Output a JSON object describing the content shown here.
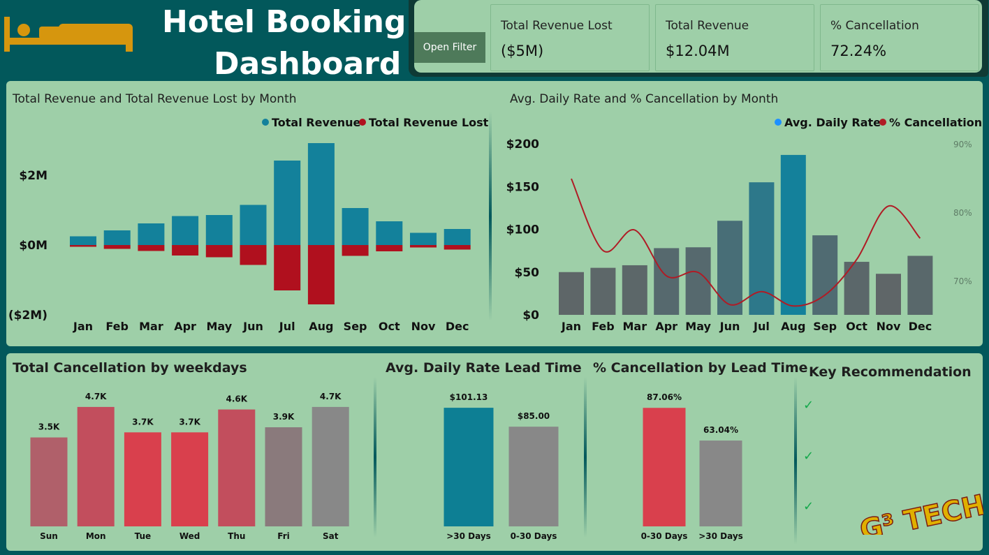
{
  "header": {
    "title_line1": "Hotel Booking",
    "title_line2": "Dashboard",
    "filter_button": "Open Filter"
  },
  "kpis": [
    {
      "label": "Total Revenue Lost",
      "value": "($5M)"
    },
    {
      "label": "Total Revenue",
      "value": "$12.04M"
    },
    {
      "label": "% Cancellation",
      "value": "72.24%"
    }
  ],
  "colors": {
    "background": "#02585b",
    "panel": "#9ecfa8",
    "revenue": "#13819b",
    "revenue_lost": "#b0101e",
    "rate_marker": "#1e90ff",
    "cancel_line": "#b01b25",
    "gray_bar": "#6b6b6b",
    "red_bar": "#d9404d",
    "check": "#14a84b",
    "icon": "#d6960e"
  },
  "icons": {
    "logo": "bed-icon",
    "brand": "g3-tech-logo",
    "check": "check-icon"
  },
  "chart_data": [
    {
      "type": "bar",
      "title": "Total Revenue and Total Revenue Lost by Month",
      "categories": [
        "Jan",
        "Feb",
        "Mar",
        "Apr",
        "May",
        "Jun",
        "Jul",
        "Aug",
        "Sep",
        "Oct",
        "Nov",
        "Dec"
      ],
      "series": [
        {
          "name": "Total Revenue",
          "values": [
            0.25,
            0.42,
            0.62,
            0.83,
            0.86,
            1.15,
            2.42,
            2.92,
            1.06,
            0.68,
            0.35,
            0.46
          ]
        },
        {
          "name": "Total Revenue Lost",
          "values": [
            -0.05,
            -0.11,
            -0.17,
            -0.3,
            -0.35,
            -0.57,
            -1.3,
            -1.7,
            -0.31,
            -0.18,
            -0.07,
            -0.13
          ]
        }
      ],
      "ylim": [
        -2,
        3.05
      ],
      "yticks": [
        {
          "v": 2,
          "label": "$2M"
        },
        {
          "v": 0,
          "label": "$0M"
        },
        {
          "v": -2,
          "label": "($2M)"
        }
      ],
      "legend_position": "top-right"
    },
    {
      "type": "bar",
      "title": "Avg. Daily Rate and % Cancellation by Month",
      "categories": [
        "Jan",
        "Feb",
        "Mar",
        "Apr",
        "May",
        "Jun",
        "Jul",
        "Aug",
        "Sep",
        "Oct",
        "Nov",
        "Dec"
      ],
      "series": [
        {
          "name": "Avg. Daily Rate",
          "values": [
            50,
            55,
            58,
            78,
            79,
            110,
            155,
            187,
            93,
            62,
            48,
            69
          ]
        },
        {
          "name": "% Cancellation",
          "type": "line",
          "axis": "right",
          "values": [
            85.0,
            74.5,
            77.5,
            70.8,
            71.3,
            66.6,
            68.5,
            66.4,
            68.0,
            73.2,
            81.0,
            76.3
          ]
        }
      ],
      "ylim": [
        0,
        200
      ],
      "yticks": [
        {
          "v": 200,
          "label": "$200"
        },
        {
          "v": 150,
          "label": "$150"
        },
        {
          "v": 100,
          "label": "$100"
        },
        {
          "v": 50,
          "label": "$50"
        },
        {
          "v": 0,
          "label": "$0"
        }
      ],
      "y2lim": [
        65,
        90
      ],
      "y2ticks": [
        {
          "v": 90,
          "label": "90%"
        },
        {
          "v": 80,
          "label": "80%"
        },
        {
          "v": 70,
          "label": "70%"
        }
      ],
      "legend_position": "top-right"
    },
    {
      "type": "bar",
      "title": "Total Cancellation by weekdays",
      "categories": [
        "Sun",
        "Mon",
        "Tue",
        "Wed",
        "Thu",
        "Fri",
        "Sat"
      ],
      "values": [
        3.5,
        4.7,
        3.7,
        3.7,
        4.6,
        3.9,
        4.7
      ],
      "labels": [
        "3.5K",
        "4.7K",
        "3.7K",
        "3.7K",
        "4.6K",
        "3.9K",
        "4.7K"
      ],
      "colors": [
        "#b0606a",
        "#c24e5d",
        "#d9404d",
        "#d9404d",
        "#c24e5d",
        "#8a7a7c",
        "#888888"
      ]
    },
    {
      "type": "bar",
      "title": "Avg. Daily Rate Lead Time",
      "categories": [
        ">30 Days",
        "0-30 Days"
      ],
      "values": [
        101.13,
        85.0
      ],
      "labels": [
        "$101.13",
        "$85.00"
      ],
      "colors": [
        "#0d7f94",
        "#888888"
      ]
    },
    {
      "type": "bar",
      "title": "% Cancellation by Lead Time",
      "categories": [
        "0-30 Days",
        ">30 Days"
      ],
      "values": [
        87.06,
        63.04
      ],
      "labels": [
        "87.06%",
        "63.04%"
      ],
      "colors": [
        "#d9404d",
        "#888888"
      ]
    }
  ],
  "recommendation": {
    "title": "Key Recommendation",
    "items": [
      "✓",
      "✓",
      "✓"
    ]
  },
  "brand": {
    "text": "G³ TECH"
  }
}
